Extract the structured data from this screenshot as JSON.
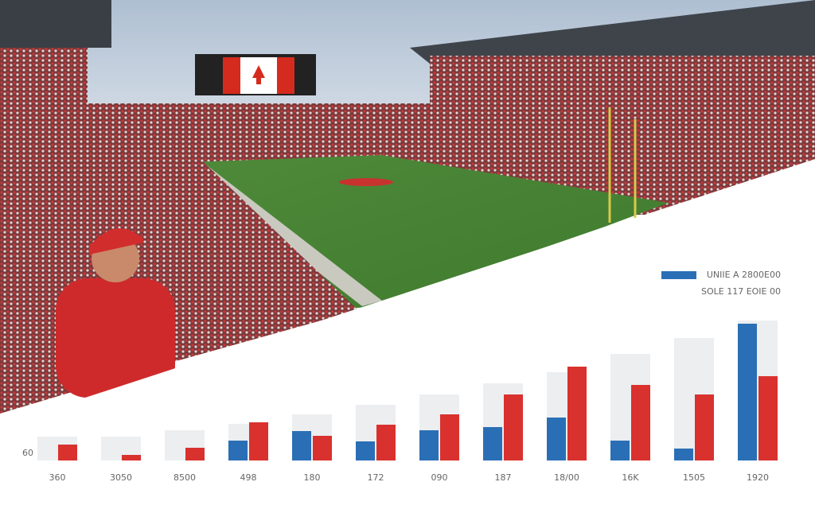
{
  "chart_data": {
    "type": "bar",
    "annotation": "60",
    "categories": [
      "360",
      "3050",
      "8500",
      "498",
      "180",
      "172",
      "090",
      "187",
      "18/00",
      "16K",
      "1505",
      "1920"
    ],
    "series": [
      {
        "color": "#eceef0",
        "values": [
          30,
          30,
          38,
          46,
          58,
          70,
          83,
          97,
          111,
          134,
          154,
          176
        ]
      },
      {
        "name": "UNIIE A 2800E00",
        "color": "#2a6fb5",
        "legend_marker": true,
        "values": [
          null,
          null,
          null,
          25,
          37,
          24,
          38,
          42,
          54,
          25,
          15,
          172
        ]
      },
      {
        "name": "SOLE 117 EOIE 00",
        "color": "#d9312e",
        "legend_marker": false,
        "values": [
          20,
          7,
          16,
          48,
          31,
          45,
          58,
          83,
          118,
          95,
          83,
          106
        ]
      }
    ],
    "ylim": [
      0,
      180
    ]
  }
}
